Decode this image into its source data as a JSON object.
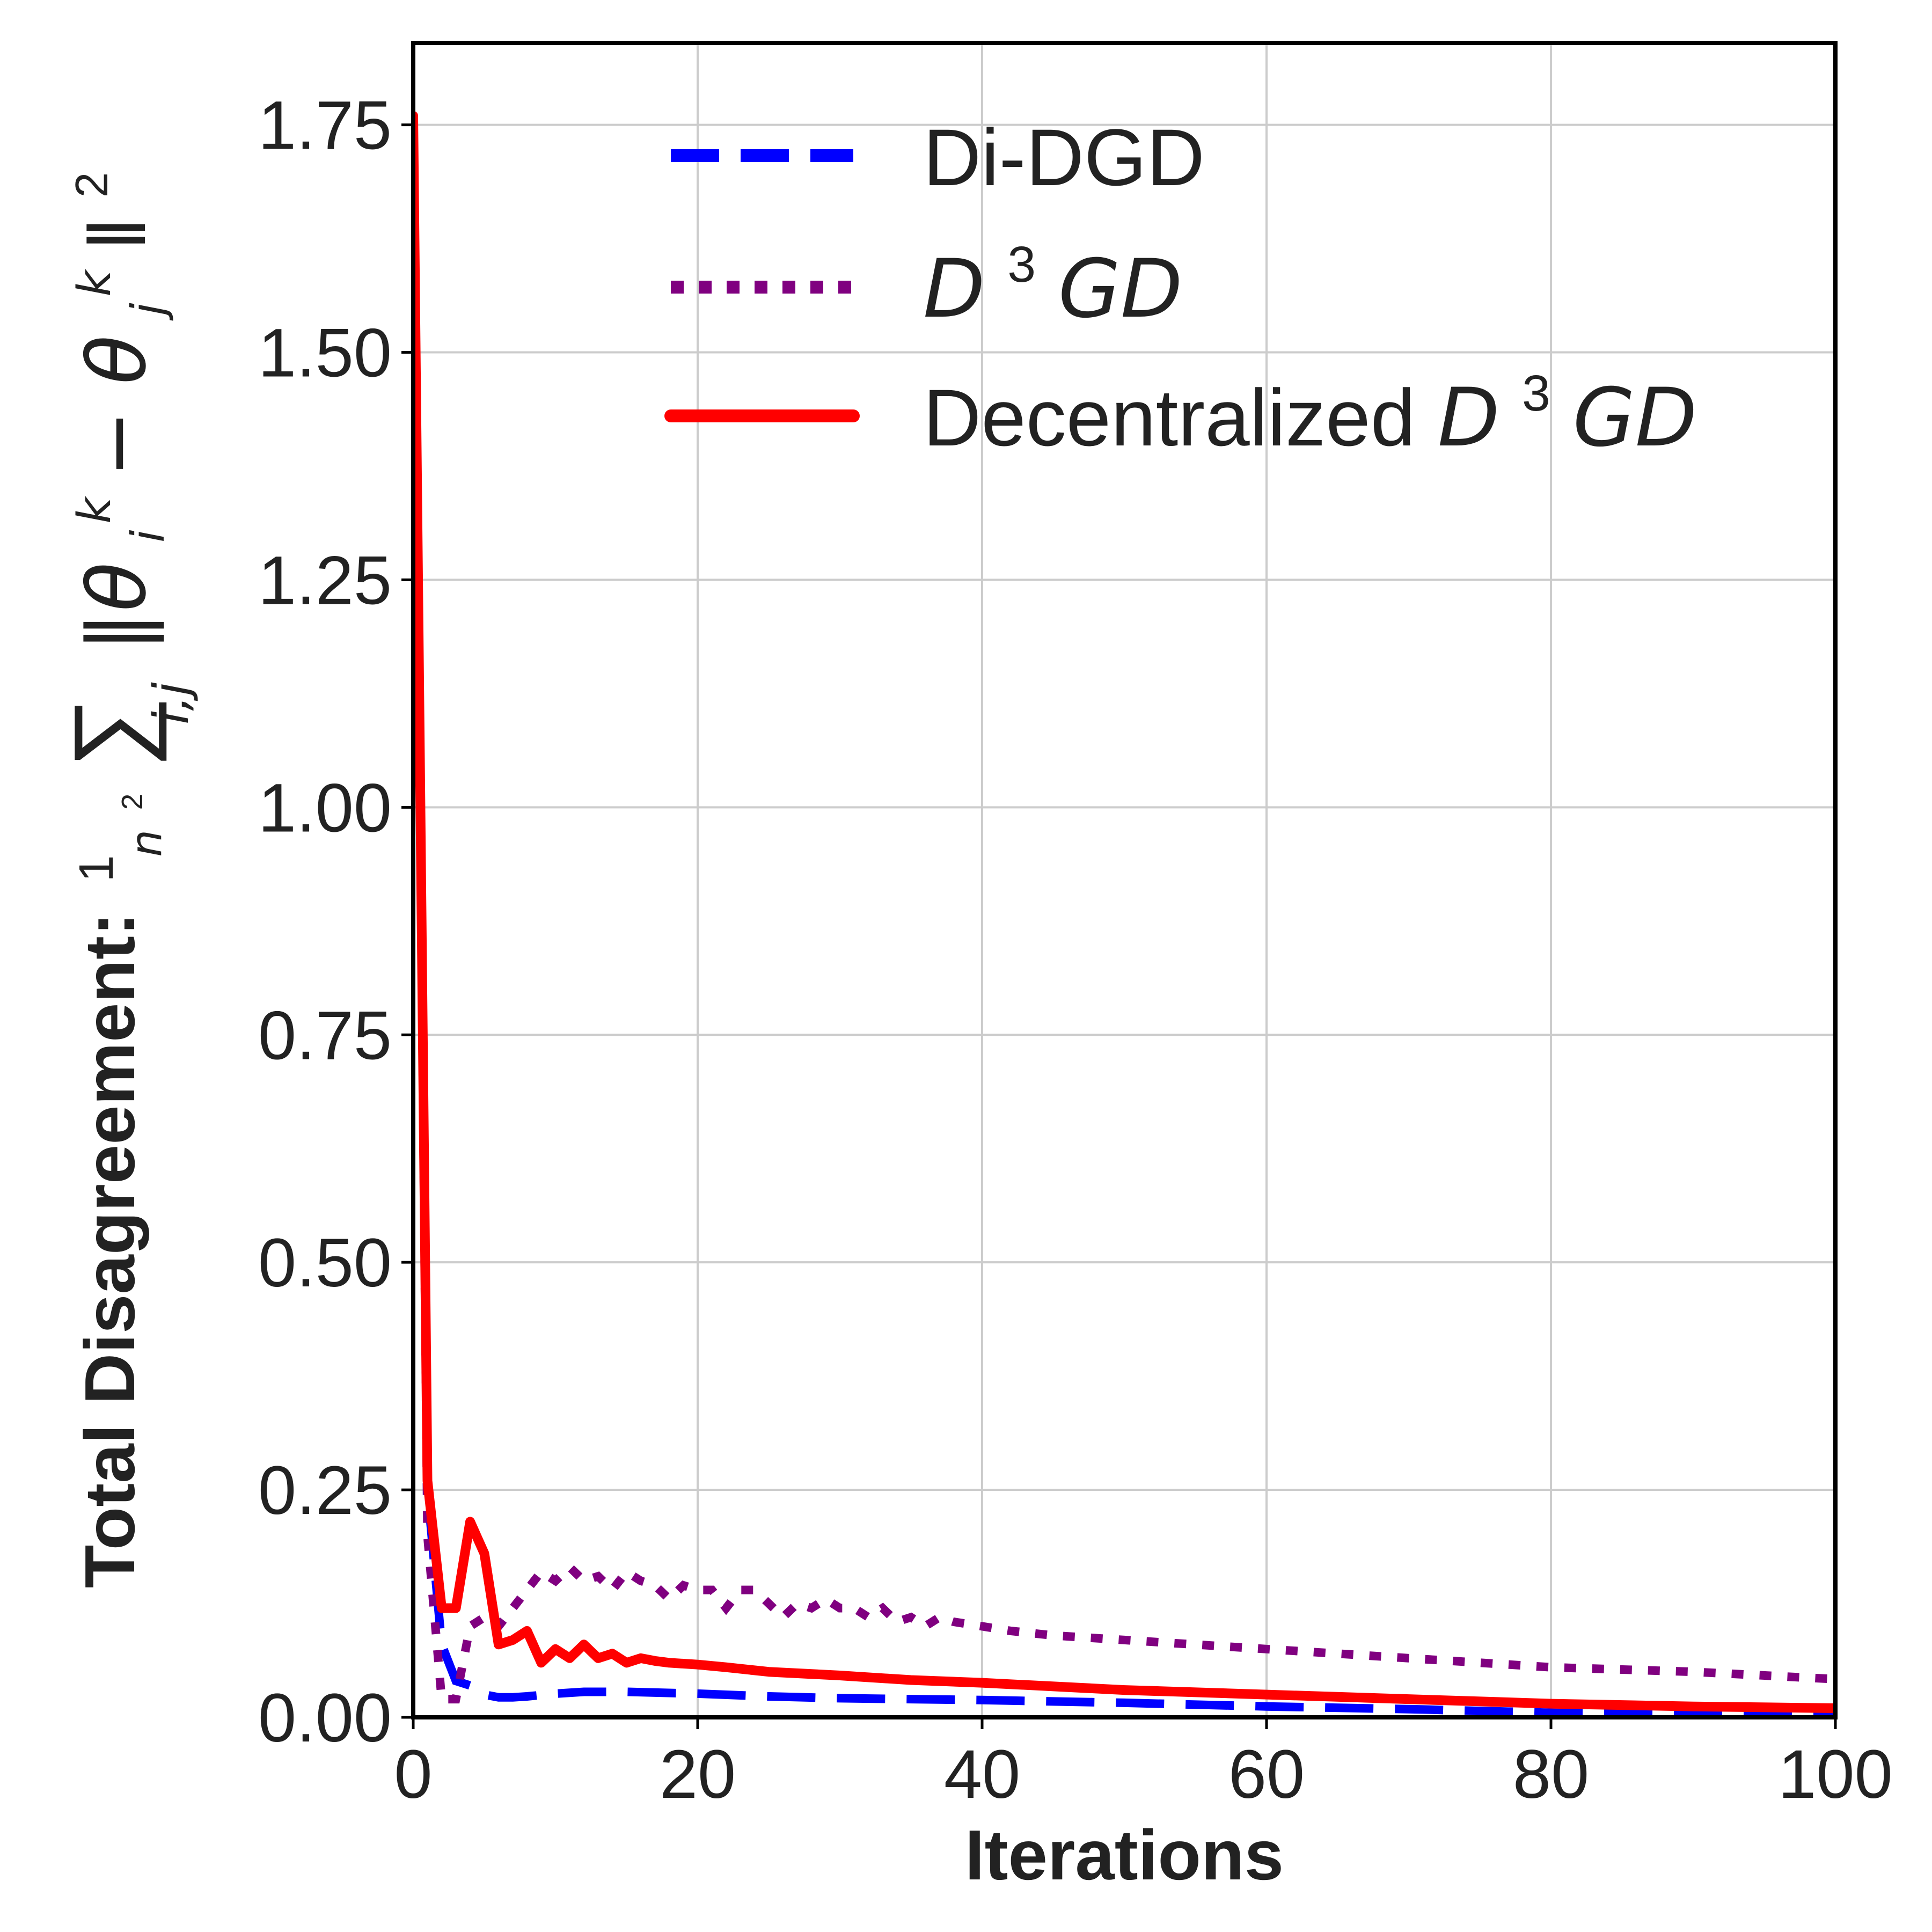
{
  "chart_data": {
    "type": "line",
    "title": "",
    "xlabel": "Iterations",
    "ylabel": {
      "prefix": "Total Disagreement:",
      "frac_num": "1",
      "frac_den": "n",
      "frac_den_exp": "2",
      "sum_symbol": "∑",
      "sum_sub": "i,j",
      "expr_open": "‖θ",
      "expr_sub_i": "i",
      "expr_sup_k1": "k",
      "expr_minus": " − θ",
      "expr_sub_j": "j",
      "expr_sup_k2": "k",
      "expr_close": "‖",
      "expr_exp": "2"
    },
    "xlim": [
      0,
      100
    ],
    "ylim": [
      0,
      1.84
    ],
    "xticks": [
      0,
      20,
      40,
      60,
      80,
      100
    ],
    "xtick_labels": [
      "0",
      "20",
      "40",
      "60",
      "80",
      "100"
    ],
    "yticks": [
      0,
      0.25,
      0.5,
      0.75,
      1.0,
      1.25,
      1.5,
      1.75
    ],
    "ytick_labels": [
      "0.00",
      "0.25",
      "0.50",
      "0.75",
      "1.00",
      "1.25",
      "1.50",
      "1.75"
    ],
    "grid": true,
    "legend_position": "top-right",
    "series": [
      {
        "name": "Di-DGD",
        "legend": {
          "plain": "Di-DGD"
        },
        "color": "#0000ff",
        "style": "dashed",
        "x": [
          0,
          1,
          2,
          3,
          4,
          5,
          6,
          7,
          8,
          10,
          12,
          15,
          20,
          25,
          30,
          40,
          50,
          60,
          70,
          80,
          90,
          100
        ],
        "y": [
          1.76,
          0.25,
          0.08,
          0.04,
          0.035,
          0.025,
          0.022,
          0.022,
          0.023,
          0.026,
          0.028,
          0.028,
          0.026,
          0.023,
          0.021,
          0.019,
          0.016,
          0.012,
          0.009,
          0.005,
          0.003,
          0.002
        ]
      },
      {
        "name": "D3GD",
        "legend": {
          "base": "D",
          "sup": "3",
          "tail": "GD"
        },
        "color": "#800080",
        "style": "dotted",
        "x": [
          0,
          1,
          2,
          3,
          4,
          5,
          6,
          7,
          8,
          9,
          10,
          11,
          12,
          13,
          14,
          15,
          16,
          17,
          18,
          19,
          20,
          21,
          22,
          23,
          24,
          25,
          26,
          27,
          28,
          29,
          30,
          31,
          32,
          33,
          34,
          35,
          36,
          37,
          38,
          40,
          42,
          45,
          50,
          60,
          70,
          80,
          90,
          100
        ],
        "y": [
          1.76,
          0.2,
          0.02,
          0.02,
          0.1,
          0.11,
          0.1,
          0.12,
          0.14,
          0.16,
          0.15,
          0.165,
          0.15,
          0.155,
          0.14,
          0.16,
          0.15,
          0.145,
          0.13,
          0.145,
          0.14,
          0.14,
          0.12,
          0.14,
          0.14,
          0.125,
          0.11,
          0.125,
          0.12,
          0.13,
          0.12,
          0.12,
          0.11,
          0.12,
          0.105,
          0.11,
          0.1,
          0.11,
          0.105,
          0.1,
          0.095,
          0.09,
          0.085,
          0.075,
          0.065,
          0.055,
          0.05,
          0.042
        ]
      },
      {
        "name": "Decentralized D3GD",
        "legend": {
          "plain": "Decentralized ",
          "base": "D",
          "sup": "3",
          "tail": "GD"
        },
        "color": "#ff0000",
        "style": "solid",
        "x": [
          0,
          1,
          2,
          3,
          4,
          5,
          6,
          7,
          8,
          9,
          10,
          11,
          12,
          13,
          14,
          15,
          16,
          17,
          18,
          20,
          22,
          25,
          30,
          35,
          40,
          50,
          60,
          70,
          80,
          90,
          100
        ],
        "y": [
          1.76,
          0.26,
          0.12,
          0.12,
          0.215,
          0.18,
          0.08,
          0.085,
          0.095,
          0.06,
          0.075,
          0.065,
          0.08,
          0.065,
          0.07,
          0.06,
          0.065,
          0.062,
          0.06,
          0.058,
          0.055,
          0.05,
          0.046,
          0.041,
          0.038,
          0.03,
          0.025,
          0.02,
          0.015,
          0.012,
          0.01
        ]
      }
    ]
  }
}
